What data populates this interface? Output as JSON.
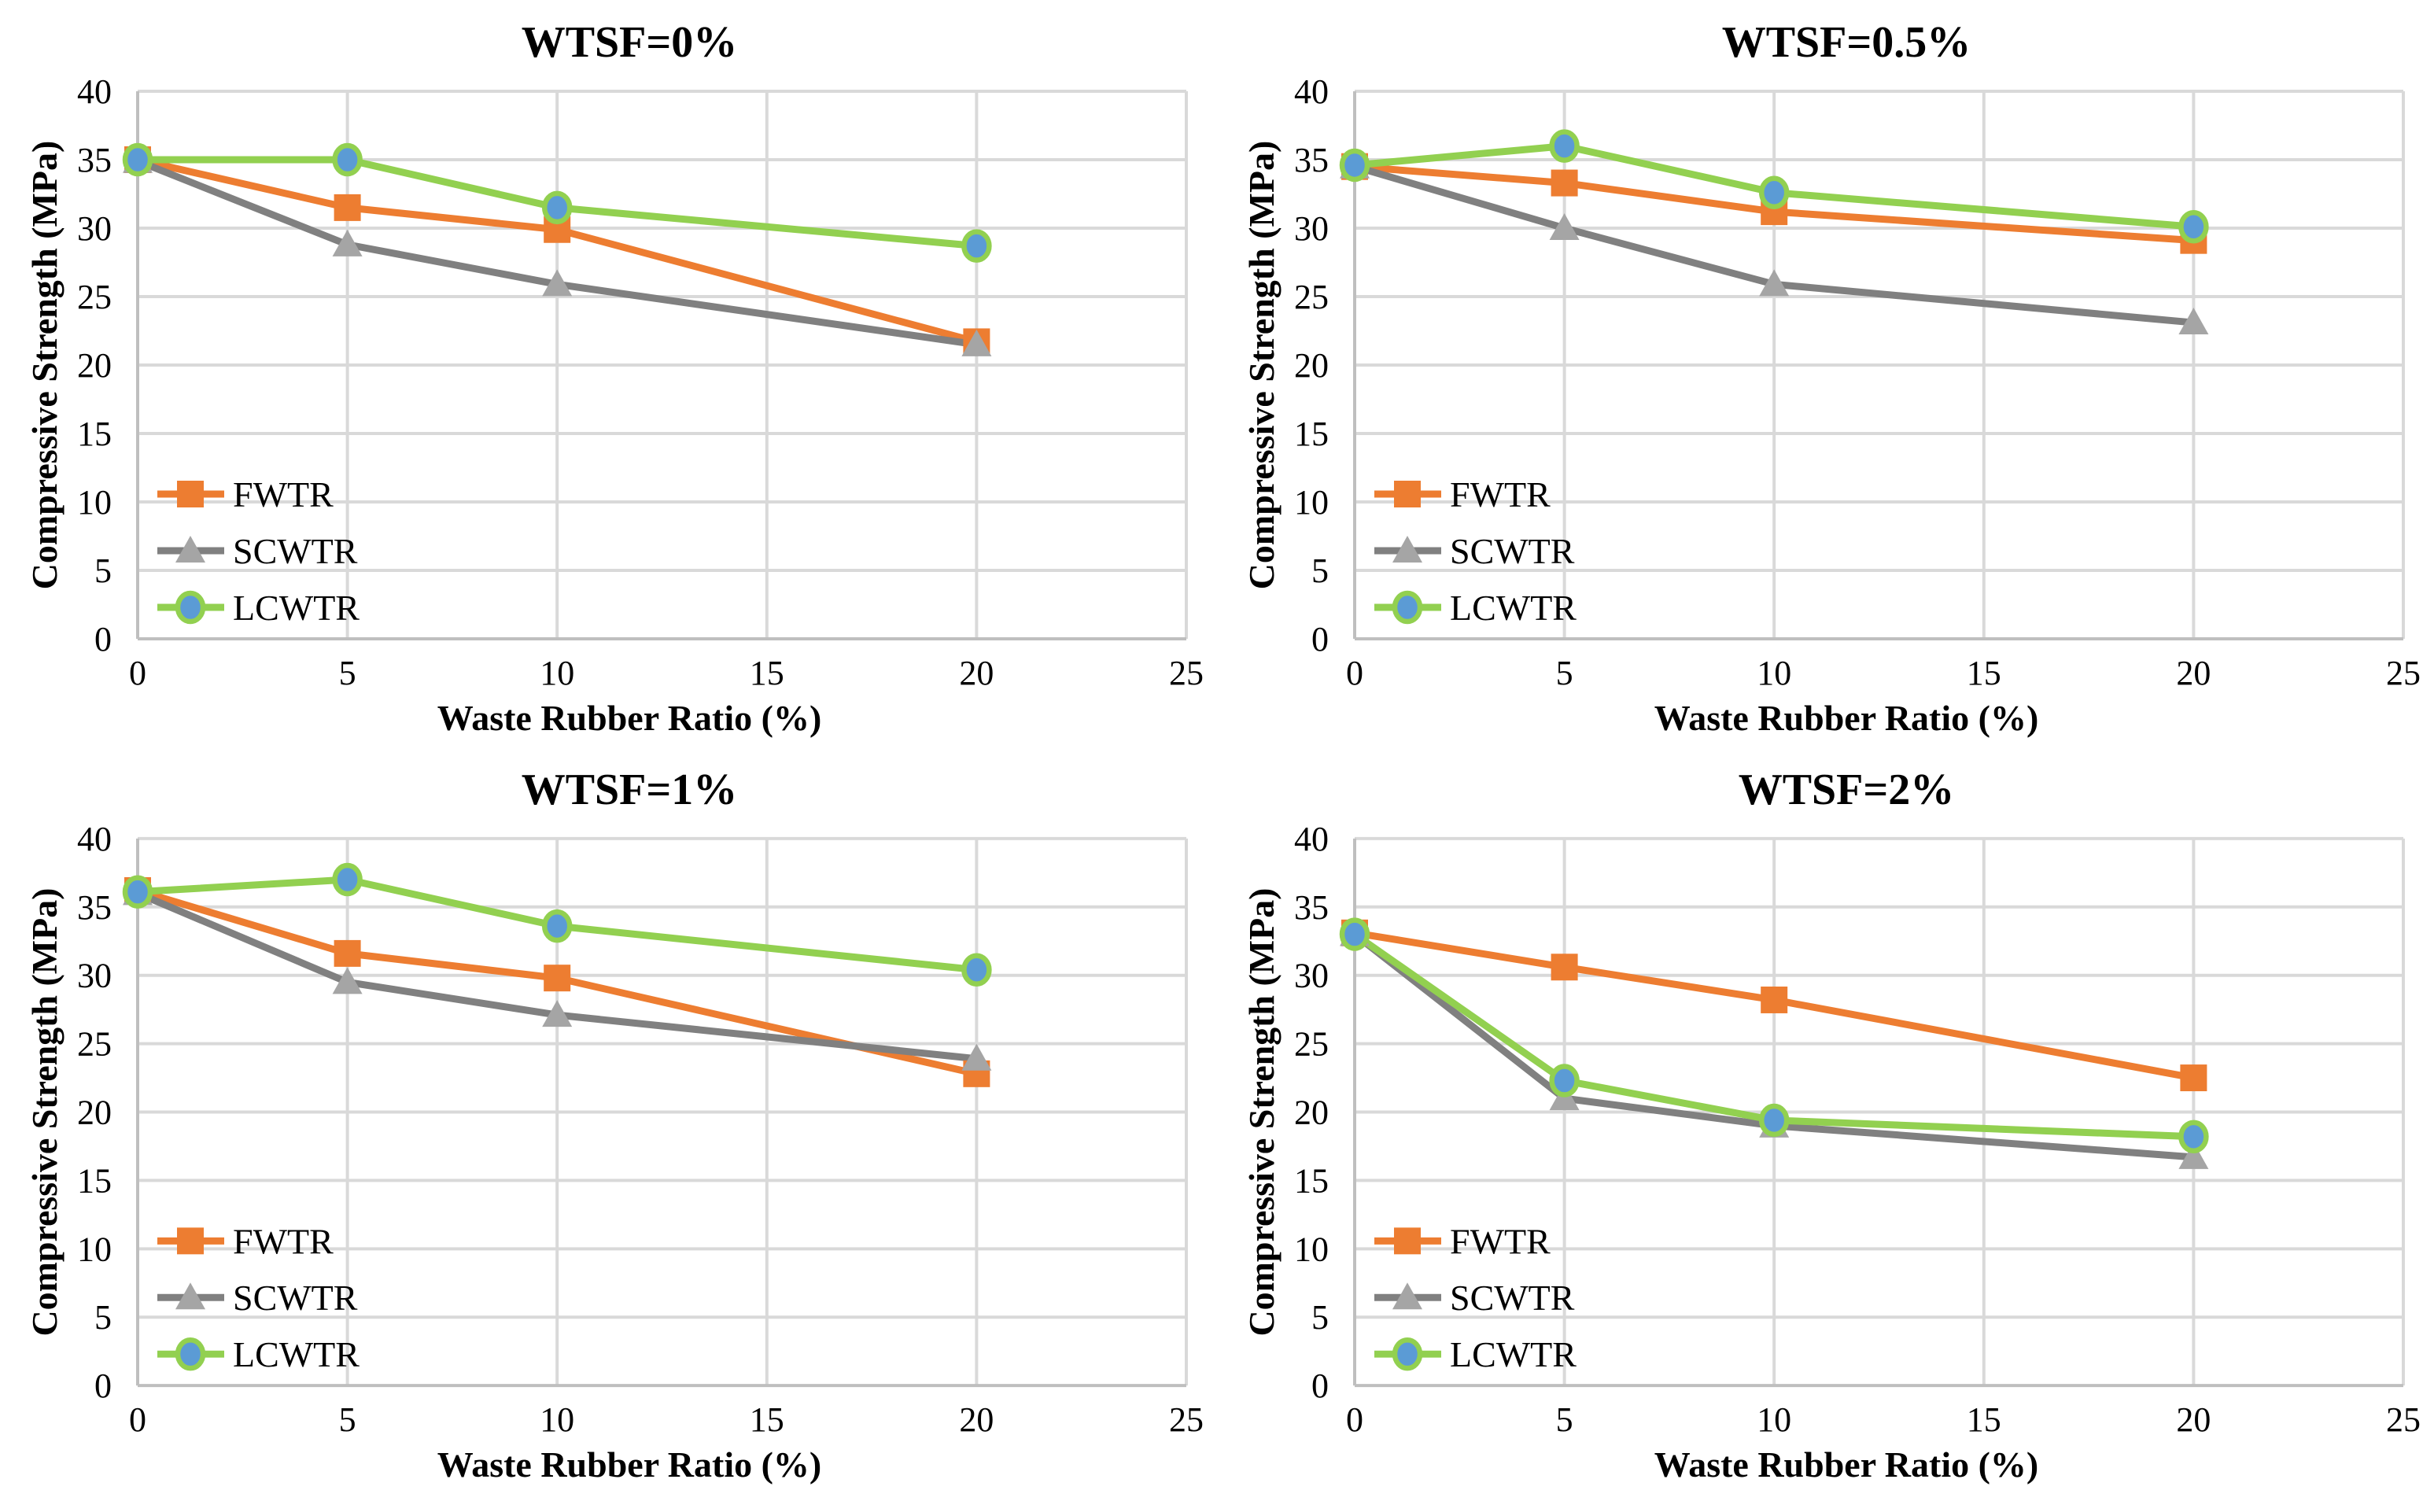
{
  "figure": {
    "layout": "2x2-grid",
    "background": "#ffffff"
  },
  "colors": {
    "gridline": "#D9D9D9",
    "axis_line": "#BFBFBF",
    "text": "#000000",
    "fwtr_orange": "#ED7D31",
    "scwtr_gray_line": "#808080",
    "scwtr_gray_marker": "#A5A5A5",
    "lcwtr_green": "#92D050",
    "lcwtr_blue_marker": "#5B9BD5"
  },
  "chart_data": [
    {
      "type": "line",
      "title": "WTSF=0%",
      "xlabel": "Waste Rubber Ratio (%)",
      "ylabel": "Compressive Strength (MPa)",
      "x": [
        0,
        5,
        10,
        20
      ],
      "xlim": [
        0,
        25
      ],
      "ylim": [
        0,
        40
      ],
      "xticks": [
        0,
        5,
        10,
        15,
        20,
        25
      ],
      "yticks": [
        0,
        5,
        10,
        15,
        20,
        25,
        30,
        35,
        40
      ],
      "grid": true,
      "legend_position": "inside-lower-left",
      "series": [
        {
          "name": "FWTR",
          "marker": "square",
          "color": "#ED7D31",
          "marker_fill": "#ED7D31",
          "marker_stroke": "none",
          "values": [
            35.0,
            31.5,
            29.9,
            21.7
          ]
        },
        {
          "name": "SCWTR",
          "marker": "triangle",
          "color": "#808080",
          "marker_fill": "#A5A5A5",
          "marker_stroke": "none",
          "values": [
            34.9,
            28.8,
            25.9,
            21.5
          ]
        },
        {
          "name": "LCWTR",
          "marker": "circle",
          "color": "#92D050",
          "marker_fill": "#5B9BD5",
          "marker_stroke": "#92D050",
          "values": [
            35.0,
            35.0,
            31.5,
            28.7
          ]
        }
      ]
    },
    {
      "type": "line",
      "title": "WTSF=0.5%",
      "xlabel": "Waste Rubber Ratio (%)",
      "ylabel": "Compressive Strength (MPa)",
      "x": [
        0,
        5,
        10,
        20
      ],
      "xlim": [
        0,
        25
      ],
      "ylim": [
        0,
        40
      ],
      "xticks": [
        0,
        5,
        10,
        15,
        20,
        25
      ],
      "yticks": [
        0,
        5,
        10,
        15,
        20,
        25,
        30,
        35,
        40
      ],
      "grid": true,
      "legend_position": "inside-lower-left",
      "series": [
        {
          "name": "FWTR",
          "marker": "square",
          "color": "#ED7D31",
          "marker_fill": "#ED7D31",
          "marker_stroke": "none",
          "values": [
            34.5,
            33.3,
            31.2,
            29.1
          ]
        },
        {
          "name": "SCWTR",
          "marker": "triangle",
          "color": "#808080",
          "marker_fill": "#A5A5A5",
          "marker_stroke": "none",
          "values": [
            34.5,
            30.0,
            25.9,
            23.1
          ]
        },
        {
          "name": "LCWTR",
          "marker": "circle",
          "color": "#92D050",
          "marker_fill": "#5B9BD5",
          "marker_stroke": "#92D050",
          "values": [
            34.6,
            36.0,
            32.6,
            30.1
          ]
        }
      ]
    },
    {
      "type": "line",
      "title": "WTSF=1%",
      "xlabel": "Waste Rubber Ratio (%)",
      "ylabel": "Compressive Strength (MPa)",
      "x": [
        0,
        5,
        10,
        20
      ],
      "xlim": [
        0,
        25
      ],
      "ylim": [
        0,
        40
      ],
      "xticks": [
        0,
        5,
        10,
        15,
        20,
        25
      ],
      "yticks": [
        0,
        5,
        10,
        15,
        20,
        25,
        30,
        35,
        40
      ],
      "grid": true,
      "legend_position": "inside-lower-left",
      "series": [
        {
          "name": "FWTR",
          "marker": "square",
          "color": "#ED7D31",
          "marker_fill": "#ED7D31",
          "marker_stroke": "none",
          "values": [
            36.2,
            31.6,
            29.8,
            22.8
          ]
        },
        {
          "name": "SCWTR",
          "marker": "triangle",
          "color": "#808080",
          "marker_fill": "#A5A5A5",
          "marker_stroke": "none",
          "values": [
            36.0,
            29.5,
            27.1,
            23.9
          ]
        },
        {
          "name": "LCWTR",
          "marker": "circle",
          "color": "#92D050",
          "marker_fill": "#5B9BD5",
          "marker_stroke": "#92D050",
          "values": [
            36.1,
            37.0,
            33.6,
            30.4
          ]
        }
      ]
    },
    {
      "type": "line",
      "title": "WTSF=2%",
      "xlabel": "Waste Rubber Ratio (%)",
      "ylabel": "Compressive Strength (MPa)",
      "x": [
        0,
        5,
        10,
        20
      ],
      "xlim": [
        0,
        25
      ],
      "ylim": [
        0,
        40
      ],
      "xticks": [
        0,
        5,
        10,
        15,
        20,
        25
      ],
      "yticks": [
        0,
        5,
        10,
        15,
        20,
        25,
        30,
        35,
        40
      ],
      "grid": true,
      "legend_position": "inside-lower-left",
      "series": [
        {
          "name": "FWTR",
          "marker": "square",
          "color": "#ED7D31",
          "marker_fill": "#ED7D31",
          "marker_stroke": "none",
          "values": [
            33.1,
            30.6,
            28.2,
            22.5
          ]
        },
        {
          "name": "SCWTR",
          "marker": "triangle",
          "color": "#808080",
          "marker_fill": "#A5A5A5",
          "marker_stroke": "none",
          "values": [
            33.0,
            21.0,
            19.0,
            16.7
          ]
        },
        {
          "name": "LCWTR",
          "marker": "circle",
          "color": "#92D050",
          "marker_fill": "#5B9BD5",
          "marker_stroke": "#92D050",
          "values": [
            33.0,
            22.3,
            19.4,
            18.2
          ]
        }
      ]
    }
  ]
}
